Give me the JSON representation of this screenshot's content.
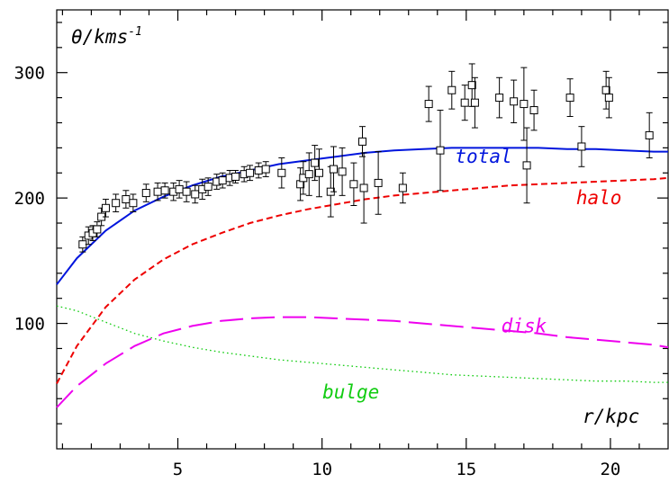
{
  "chart_data": {
    "type": "scatter",
    "ylabel": "θ/kms",
    "ylabel_superscript": "-1",
    "xlabel": "r/kpc",
    "xlim": [
      0.8,
      22.0
    ],
    "ylim": [
      0,
      350
    ],
    "xticks": [
      5,
      10,
      15,
      20
    ],
    "yticks": [
      100,
      200,
      300
    ],
    "grid": false,
    "observations": {
      "marker": "open-square",
      "x": [
        1.7,
        1.9,
        2.05,
        2.2,
        2.35,
        2.5,
        2.85,
        3.2,
        3.45,
        3.9,
        4.3,
        4.55,
        4.85,
        5.05,
        5.3,
        5.6,
        5.85,
        6.05,
        6.35,
        6.55,
        6.8,
        7.0,
        7.3,
        7.5,
        7.8,
        8.05,
        8.6,
        9.25,
        9.35,
        9.55,
        9.75,
        9.9,
        10.3,
        10.4,
        10.7,
        11.1,
        11.4,
        11.45,
        11.95,
        12.8,
        13.7,
        14.1,
        14.5,
        14.95,
        15.2,
        15.3,
        16.15,
        16.65,
        17.0,
        17.1,
        17.35,
        18.6,
        19.0,
        19.85,
        19.95,
        21.35
      ],
      "y": [
        163,
        170,
        172,
        175,
        185,
        192,
        196,
        199,
        196,
        204,
        205,
        206,
        205,
        207,
        205,
        203,
        207,
        209,
        213,
        214,
        216,
        217,
        219,
        220,
        222,
        223,
        220,
        211,
        216,
        219,
        228,
        220,
        205,
        223,
        221,
        211,
        245,
        208,
        212,
        208,
        275,
        238,
        286,
        276,
        290,
        276,
        280,
        277,
        275,
        226,
        270,
        280,
        241,
        286,
        280,
        250
      ],
      "error": [
        6,
        7,
        6,
        6,
        7,
        7,
        7,
        7,
        7,
        7,
        7,
        6,
        7,
        7,
        8,
        7,
        8,
        7,
        6,
        6,
        6,
        5,
        6,
        6,
        6,
        6,
        12,
        13,
        13,
        17,
        14,
        19,
        20,
        18,
        19,
        17,
        12,
        28,
        25,
        12,
        14,
        32,
        15,
        14,
        17,
        20,
        16,
        17,
        29,
        30,
        16,
        15,
        16,
        15,
        16,
        18
      ]
    },
    "series": [
      {
        "name": "total",
        "style": "solid",
        "color": "#0015dd",
        "x": [
          0.8,
          1.5,
          2.5,
          3.5,
          4.5,
          5.5,
          6.5,
          7.5,
          8.5,
          9.5,
          10.5,
          11.5,
          12.5,
          13.5,
          14.5,
          15.5,
          16.5,
          17.5,
          18.5,
          19.5,
          20.5,
          21.5,
          22.0
        ],
        "y": [
          131,
          152,
          174,
          190,
          201,
          210,
          217,
          222,
          227,
          230,
          233,
          236,
          238,
          239,
          240,
          240,
          240,
          240,
          239,
          239,
          238,
          237,
          237
        ]
      },
      {
        "name": "halo",
        "style": "dashed",
        "color": "#ee0000",
        "x": [
          0.8,
          1.5,
          2.5,
          3.5,
          4.5,
          5.5,
          6.5,
          7.5,
          8.5,
          9.5,
          10.5,
          11.5,
          12.5,
          13.5,
          14.5,
          15.5,
          16.5,
          17.5,
          18.5,
          19.5,
          20.5,
          21.5,
          22.0
        ],
        "y": [
          52,
          82,
          113,
          135,
          151,
          163,
          172,
          180,
          186,
          191,
          195,
          199,
          202,
          204,
          206,
          208,
          210,
          211,
          212,
          213,
          214,
          215,
          216
        ]
      },
      {
        "name": "disk",
        "style": "long-dashed",
        "color": "#ee00ee",
        "x": [
          0.8,
          1.5,
          2.5,
          3.5,
          4.5,
          5.5,
          6.5,
          7.5,
          8.5,
          9.5,
          10.5,
          11.5,
          12.5,
          13.5,
          14.5,
          15.5,
          16.5,
          17.5,
          18.5,
          19.5,
          20.5,
          21.5,
          22.0
        ],
        "y": [
          33,
          50,
          68,
          82,
          92,
          98,
          102,
          104,
          105,
          105,
          104,
          103,
          102,
          100,
          98,
          96,
          94,
          92,
          89,
          87,
          85,
          83,
          81
        ]
      },
      {
        "name": "bulge",
        "style": "dotted",
        "color": "#11cc11",
        "x": [
          0.8,
          1.5,
          2.5,
          3.5,
          4.5,
          5.5,
          6.5,
          7.5,
          8.5,
          9.5,
          10.5,
          11.5,
          12.5,
          13.5,
          14.5,
          15.5,
          16.5,
          17.5,
          18.5,
          19.5,
          20.5,
          21.5,
          22.0
        ],
        "y": [
          114,
          110,
          101,
          92,
          86,
          81,
          77,
          74,
          71,
          69,
          67,
          65,
          63,
          61,
          59,
          58,
          57,
          56,
          55,
          54,
          54,
          53,
          53
        ]
      }
    ],
    "annotations": [
      {
        "text": "total",
        "x": 15.6,
        "y": 228,
        "color": "#0015dd"
      },
      {
        "text": "halo",
        "x": 19.6,
        "y": 195,
        "color": "#ee0000"
      },
      {
        "text": "disk",
        "x": 17.0,
        "y": 93,
        "color": "#ee00ee"
      },
      {
        "text": "bulge",
        "x": 11.0,
        "y": 40,
        "color": "#11cc11"
      }
    ]
  }
}
